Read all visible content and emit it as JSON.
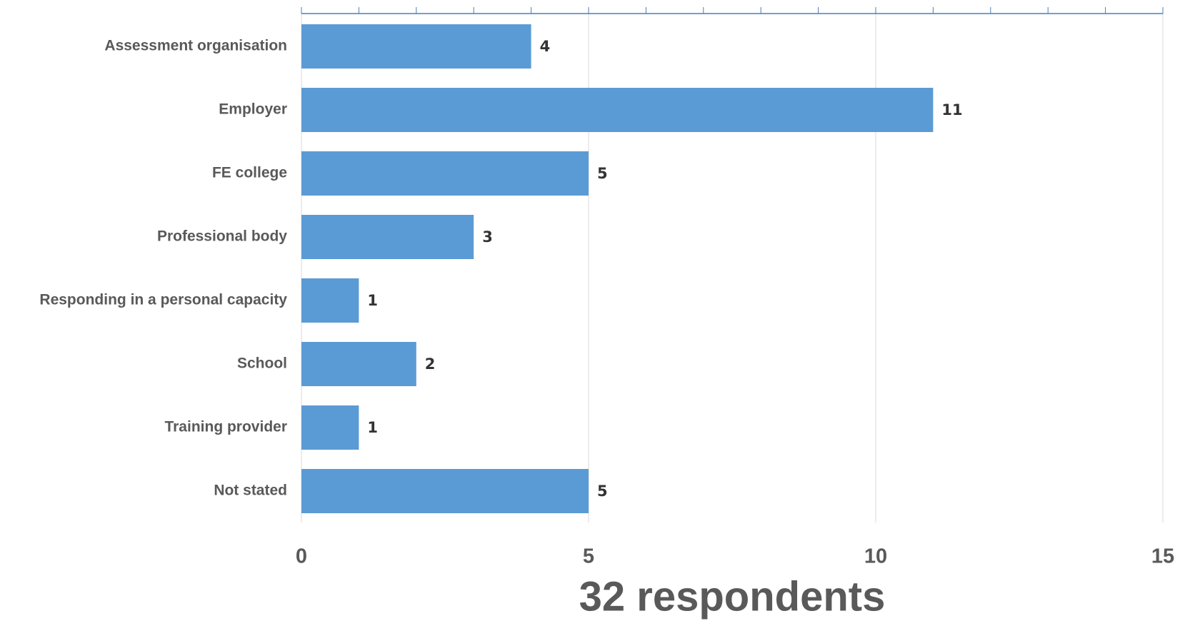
{
  "chart_data": {
    "type": "bar",
    "orientation": "horizontal",
    "xlabel": "32 respondents",
    "categories": [
      "Assessment organisation",
      "Employer",
      "FE college",
      "Professional body",
      "Responding in a personal capacity",
      "School",
      "Training provider",
      "Not stated"
    ],
    "values": [
      4,
      11,
      5,
      3,
      1,
      2,
      1,
      5
    ],
    "color": "#5b9bd5",
    "xlim": [
      0,
      15
    ],
    "xticks": [
      0,
      5,
      10,
      15
    ],
    "minor_xticks": [
      1,
      2,
      3,
      4,
      6,
      7,
      8,
      9,
      11,
      12,
      13,
      14
    ],
    "grid": true
  }
}
